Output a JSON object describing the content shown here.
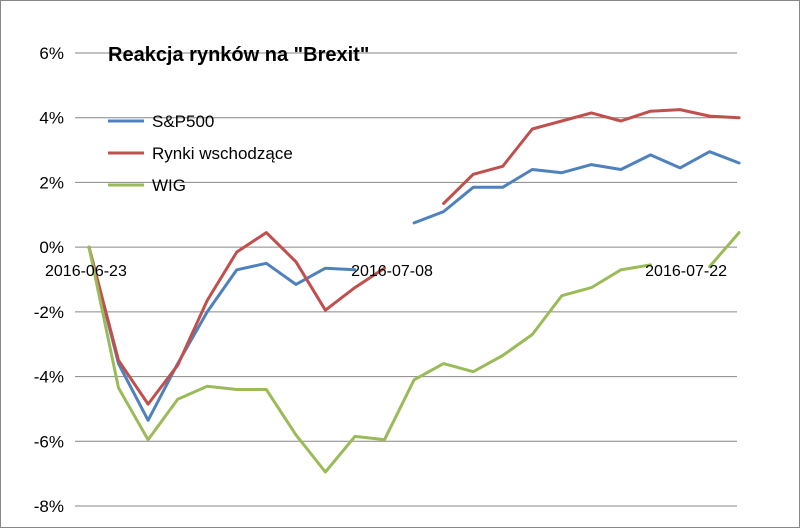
{
  "chart_data": {
    "type": "line",
    "title": "Reakcja rynków na \"Brexit\"",
    "xlabel": "",
    "ylabel": "",
    "ylim": [
      -8,
      6
    ],
    "yticks": [
      6,
      4,
      2,
      0,
      -2,
      -4,
      -6,
      -8
    ],
    "ytick_labels": [
      "6%",
      "4%",
      "2%",
      "0%",
      "-2%",
      "-4%",
      "-6%",
      "-8%"
    ],
    "x_labels": [
      {
        "index": 0,
        "label": "2016-06-23"
      },
      {
        "index": 10,
        "label": "2016-07-08"
      },
      {
        "index": 20,
        "label": "2016-07-22"
      }
    ],
    "grid": true,
    "legend": "top-left",
    "series": [
      {
        "name": "S&P500",
        "color": "#4F81BD",
        "values": [
          0,
          -3.6,
          -5.35,
          -3.6,
          -2.0,
          -0.7,
          -0.5,
          -1.15,
          -0.65,
          -0.7,
          null,
          0.75,
          1.1,
          1.85,
          1.85,
          2.4,
          2.3,
          2.55,
          2.4,
          2.85,
          2.45,
          2.95,
          2.6
        ]
      },
      {
        "name": "Rynki wschodzące",
        "color": "#C0504D",
        "values": [
          0,
          -3.5,
          -4.85,
          -3.65,
          -1.65,
          -0.15,
          0.45,
          -0.45,
          -1.95,
          -1.25,
          -0.65,
          null,
          1.35,
          2.25,
          2.5,
          3.65,
          3.9,
          4.15,
          3.9,
          4.2,
          4.25,
          4.05,
          4.0
        ]
      },
      {
        "name": "WIG",
        "color": "#9BBB59",
        "values": [
          0,
          -4.35,
          -5.95,
          -4.7,
          -4.3,
          -4.4,
          -4.4,
          -5.8,
          -6.95,
          -5.85,
          -5.95,
          -4.1,
          -3.6,
          -3.85,
          -3.35,
          -2.7,
          -1.5,
          -1.25,
          -0.7,
          -0.55,
          null,
          -0.6,
          0.45
        ]
      }
    ]
  }
}
